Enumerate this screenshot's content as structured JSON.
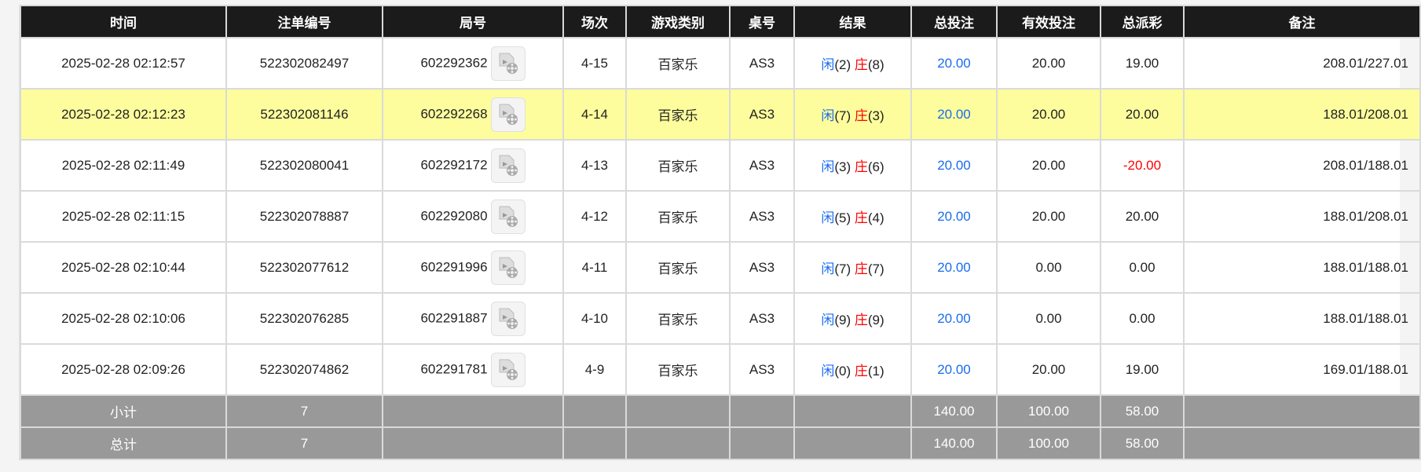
{
  "headers": [
    "时间",
    "注单编号",
    "局号",
    "场次",
    "游戏类别",
    "桌号",
    "结果",
    "总投注",
    "有效投注",
    "总派彩",
    "备注"
  ],
  "result_labels": {
    "player": "闲",
    "banker": "庄"
  },
  "colors": {
    "header_bg": "#1b1b1b",
    "highlight_row": "#fdfd9d",
    "summary_bg": "#999999",
    "blue": "#1a6cf0",
    "red": "#ff0000"
  },
  "rows": [
    {
      "time": "2025-02-28 02:12:57",
      "bet_id": "522302082497",
      "round": "602292362",
      "session": "4-15",
      "game": "百家乐",
      "table": "AS3",
      "player": "(2)",
      "banker": "(8)",
      "total_bet": "20.00",
      "valid_bet": "20.00",
      "payout": "19.00",
      "note": "208.01/227.01",
      "highlight": false,
      "negative": false
    },
    {
      "time": "2025-02-28 02:12:23",
      "bet_id": "522302081146",
      "round": "602292268",
      "session": "4-14",
      "game": "百家乐",
      "table": "AS3",
      "player": "(7)",
      "banker": "(3)",
      "total_bet": "20.00",
      "valid_bet": "20.00",
      "payout": "20.00",
      "note": "188.01/208.01",
      "highlight": true,
      "negative": false
    },
    {
      "time": "2025-02-28 02:11:49",
      "bet_id": "522302080041",
      "round": "602292172",
      "session": "4-13",
      "game": "百家乐",
      "table": "AS3",
      "player": "(3)",
      "banker": "(6)",
      "total_bet": "20.00",
      "valid_bet": "20.00",
      "payout": "-20.00",
      "note": "208.01/188.01",
      "highlight": false,
      "negative": true
    },
    {
      "time": "2025-02-28 02:11:15",
      "bet_id": "522302078887",
      "round": "602292080",
      "session": "4-12",
      "game": "百家乐",
      "table": "AS3",
      "player": "(5)",
      "banker": "(4)",
      "total_bet": "20.00",
      "valid_bet": "20.00",
      "payout": "20.00",
      "note": "188.01/208.01",
      "highlight": false,
      "negative": false
    },
    {
      "time": "2025-02-28 02:10:44",
      "bet_id": "522302077612",
      "round": "602291996",
      "session": "4-11",
      "game": "百家乐",
      "table": "AS3",
      "player": "(7)",
      "banker": "(7)",
      "total_bet": "20.00",
      "valid_bet": "0.00",
      "payout": "0.00",
      "note": "188.01/188.01",
      "highlight": false,
      "negative": false
    },
    {
      "time": "2025-02-28 02:10:06",
      "bet_id": "522302076285",
      "round": "602291887",
      "session": "4-10",
      "game": "百家乐",
      "table": "AS3",
      "player": "(9)",
      "banker": "(9)",
      "total_bet": "20.00",
      "valid_bet": "0.00",
      "payout": "0.00",
      "note": "188.01/188.01",
      "highlight": false,
      "negative": false
    },
    {
      "time": "2025-02-28 02:09:26",
      "bet_id": "522302074862",
      "round": "602291781",
      "session": "4-9",
      "game": "百家乐",
      "table": "AS3",
      "player": "(0)",
      "banker": "(1)",
      "total_bet": "20.00",
      "valid_bet": "20.00",
      "payout": "19.00",
      "note": "169.01/188.01",
      "highlight": false,
      "negative": false
    }
  ],
  "subtotal": {
    "label": "小计",
    "count": "7",
    "total_bet": "140.00",
    "valid_bet": "100.00",
    "payout": "58.00"
  },
  "total": {
    "label": "总计",
    "count": "7",
    "total_bet": "140.00",
    "valid_bet": "100.00",
    "payout": "58.00"
  }
}
